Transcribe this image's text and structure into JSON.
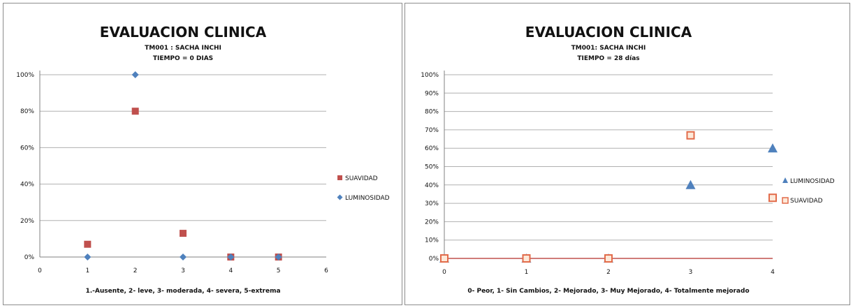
{
  "chart_data": [
    {
      "type": "scatter",
      "title": "EVALUACION CLINICA",
      "subtitle_lines": [
        "TM001 : SACHA INCHI",
        "TIEMPO = 0 DIAS"
      ],
      "xlabel": "1.-Ausente, 2- leve, 3- moderada, 4- severa, 5-extrema",
      "ylabel": "",
      "xlim": [
        0,
        6
      ],
      "ylim": [
        0,
        100
      ],
      "x_ticks": [
        0,
        1,
        2,
        3,
        4,
        5,
        6
      ],
      "y_ticks": [
        0,
        20,
        40,
        60,
        80,
        100
      ],
      "y_tick_labels": [
        "0%",
        "20%",
        "40%",
        "60%",
        "80%",
        "100%"
      ],
      "grid": true,
      "legend_position": "right",
      "series": [
        {
          "name": "SUAVIDAD",
          "marker": "square",
          "color": "#c0504d",
          "x": [
            1,
            2,
            3,
            4,
            5
          ],
          "y": [
            7,
            80,
            13,
            0,
            0
          ]
        },
        {
          "name": "LUMINOSIDAD",
          "marker": "diamond",
          "color": "#4f81bd",
          "x": [
            1,
            2,
            3,
            4,
            5
          ],
          "y": [
            0,
            100,
            0,
            0,
            0
          ]
        }
      ]
    },
    {
      "type": "scatter",
      "title": "EVALUACION CLINICA",
      "subtitle_lines": [
        "TM001: SACHA INCHI",
        "TIEMPO = 28 días"
      ],
      "xlabel": "0- Peor, 1- Sin Cambios, 2- Mejorado, 3- Muy Mejorado, 4- Totalmente mejorado",
      "ylabel": "",
      "xlim": [
        0,
        4
      ],
      "ylim": [
        0,
        100
      ],
      "x_ticks": [
        0,
        1,
        2,
        3,
        4
      ],
      "y_ticks": [
        0,
        10,
        20,
        30,
        40,
        50,
        60,
        70,
        80,
        90,
        100
      ],
      "y_tick_labels": [
        "0%",
        "10%",
        "20%",
        "30%",
        "40%",
        "50%",
        "60%",
        "70%",
        "80%",
        "90%",
        "100%"
      ],
      "grid": true,
      "legend_position": "right",
      "series": [
        {
          "name": "LUMINOSIDAD",
          "marker": "triangle",
          "color": "#4f81bd",
          "x": [
            0,
            1,
            2,
            3,
            4
          ],
          "y": [
            0,
            0,
            0,
            40,
            60
          ]
        },
        {
          "name": "SUAVIDAD",
          "marker": "square-open",
          "color": "#e26b4a",
          "x": [
            0,
            1,
            2,
            3,
            4
          ],
          "y": [
            0,
            0,
            0,
            67,
            33
          ]
        }
      ]
    }
  ]
}
